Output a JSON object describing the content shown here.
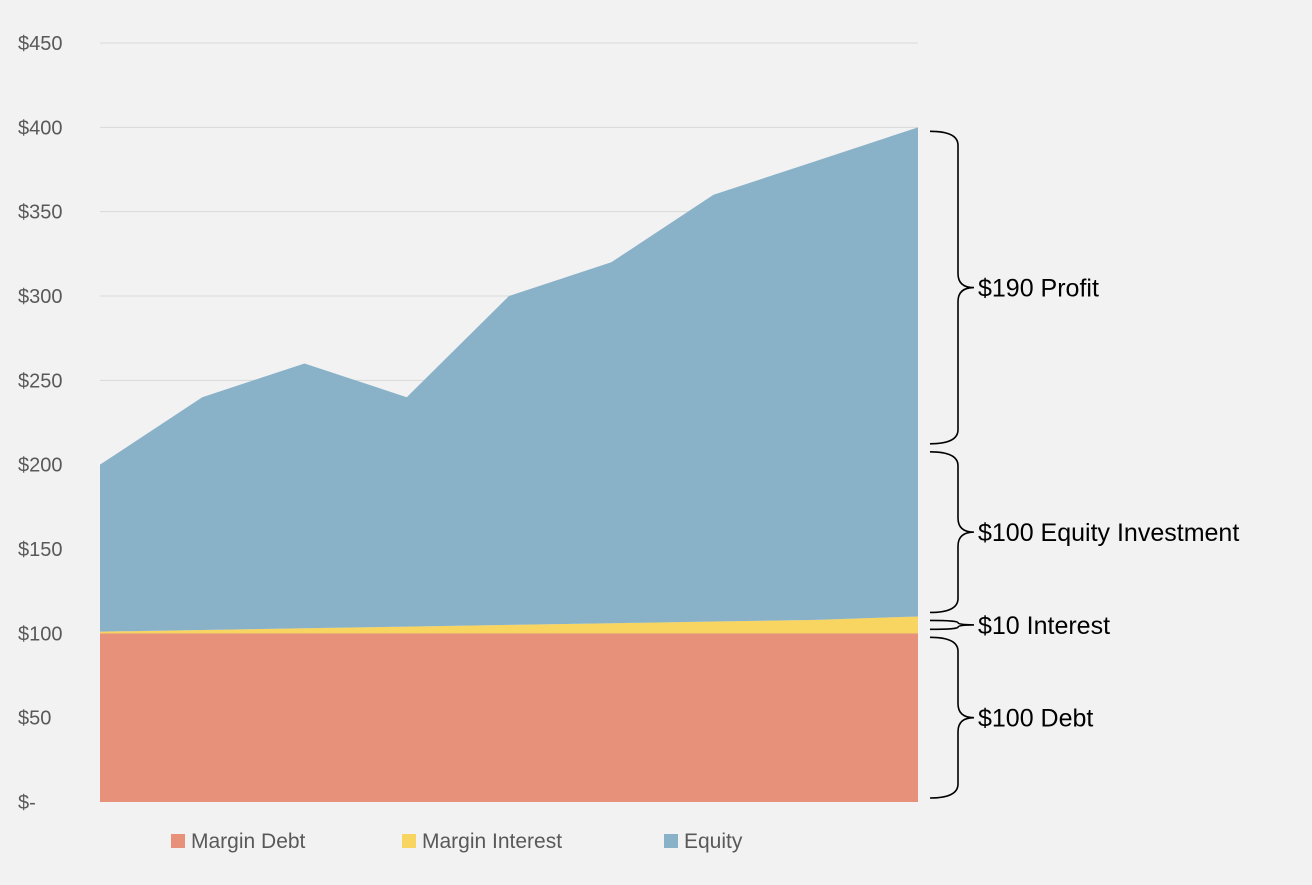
{
  "chart_data": {
    "type": "area",
    "stacked": true,
    "x": [
      1,
      2,
      3,
      4,
      5,
      6,
      7,
      8,
      9
    ],
    "series": [
      {
        "name": "Margin Debt",
        "color": "#e8917a",
        "values": [
          100,
          100,
          100,
          100,
          100,
          100,
          100,
          100,
          100
        ]
      },
      {
        "name": "Margin Interest",
        "color": "#f8d460",
        "values": [
          1,
          2,
          3,
          4,
          5,
          6,
          7,
          8,
          10
        ]
      },
      {
        "name": "Equity",
        "color": "#89b2c9",
        "values": [
          99,
          138,
          157,
          136,
          195,
          214,
          253,
          272,
          290
        ]
      }
    ],
    "ylim": [
      0,
      450
    ],
    "yticks": [
      {
        "value": 0,
        "label": "$-"
      },
      {
        "value": 50,
        "label": "$50"
      },
      {
        "value": 100,
        "label": "$100"
      },
      {
        "value": 150,
        "label": "$150"
      },
      {
        "value": 200,
        "label": "$200"
      },
      {
        "value": 250,
        "label": "$250"
      },
      {
        "value": 300,
        "label": "$300"
      },
      {
        "value": 350,
        "label": "$350"
      },
      {
        "value": 400,
        "label": "$400"
      },
      {
        "value": 450,
        "label": "$450"
      }
    ],
    "grid": true,
    "legend_position": "bottom",
    "annotations": [
      {
        "text": "$190 Profit",
        "from": 210,
        "to": 400
      },
      {
        "text": "$100 Equity Investment",
        "from": 110,
        "to": 210
      },
      {
        "text": "$10 Interest",
        "from": 100,
        "to": 110
      },
      {
        "text": "$100 Debt",
        "from": 0,
        "to": 100
      }
    ]
  }
}
